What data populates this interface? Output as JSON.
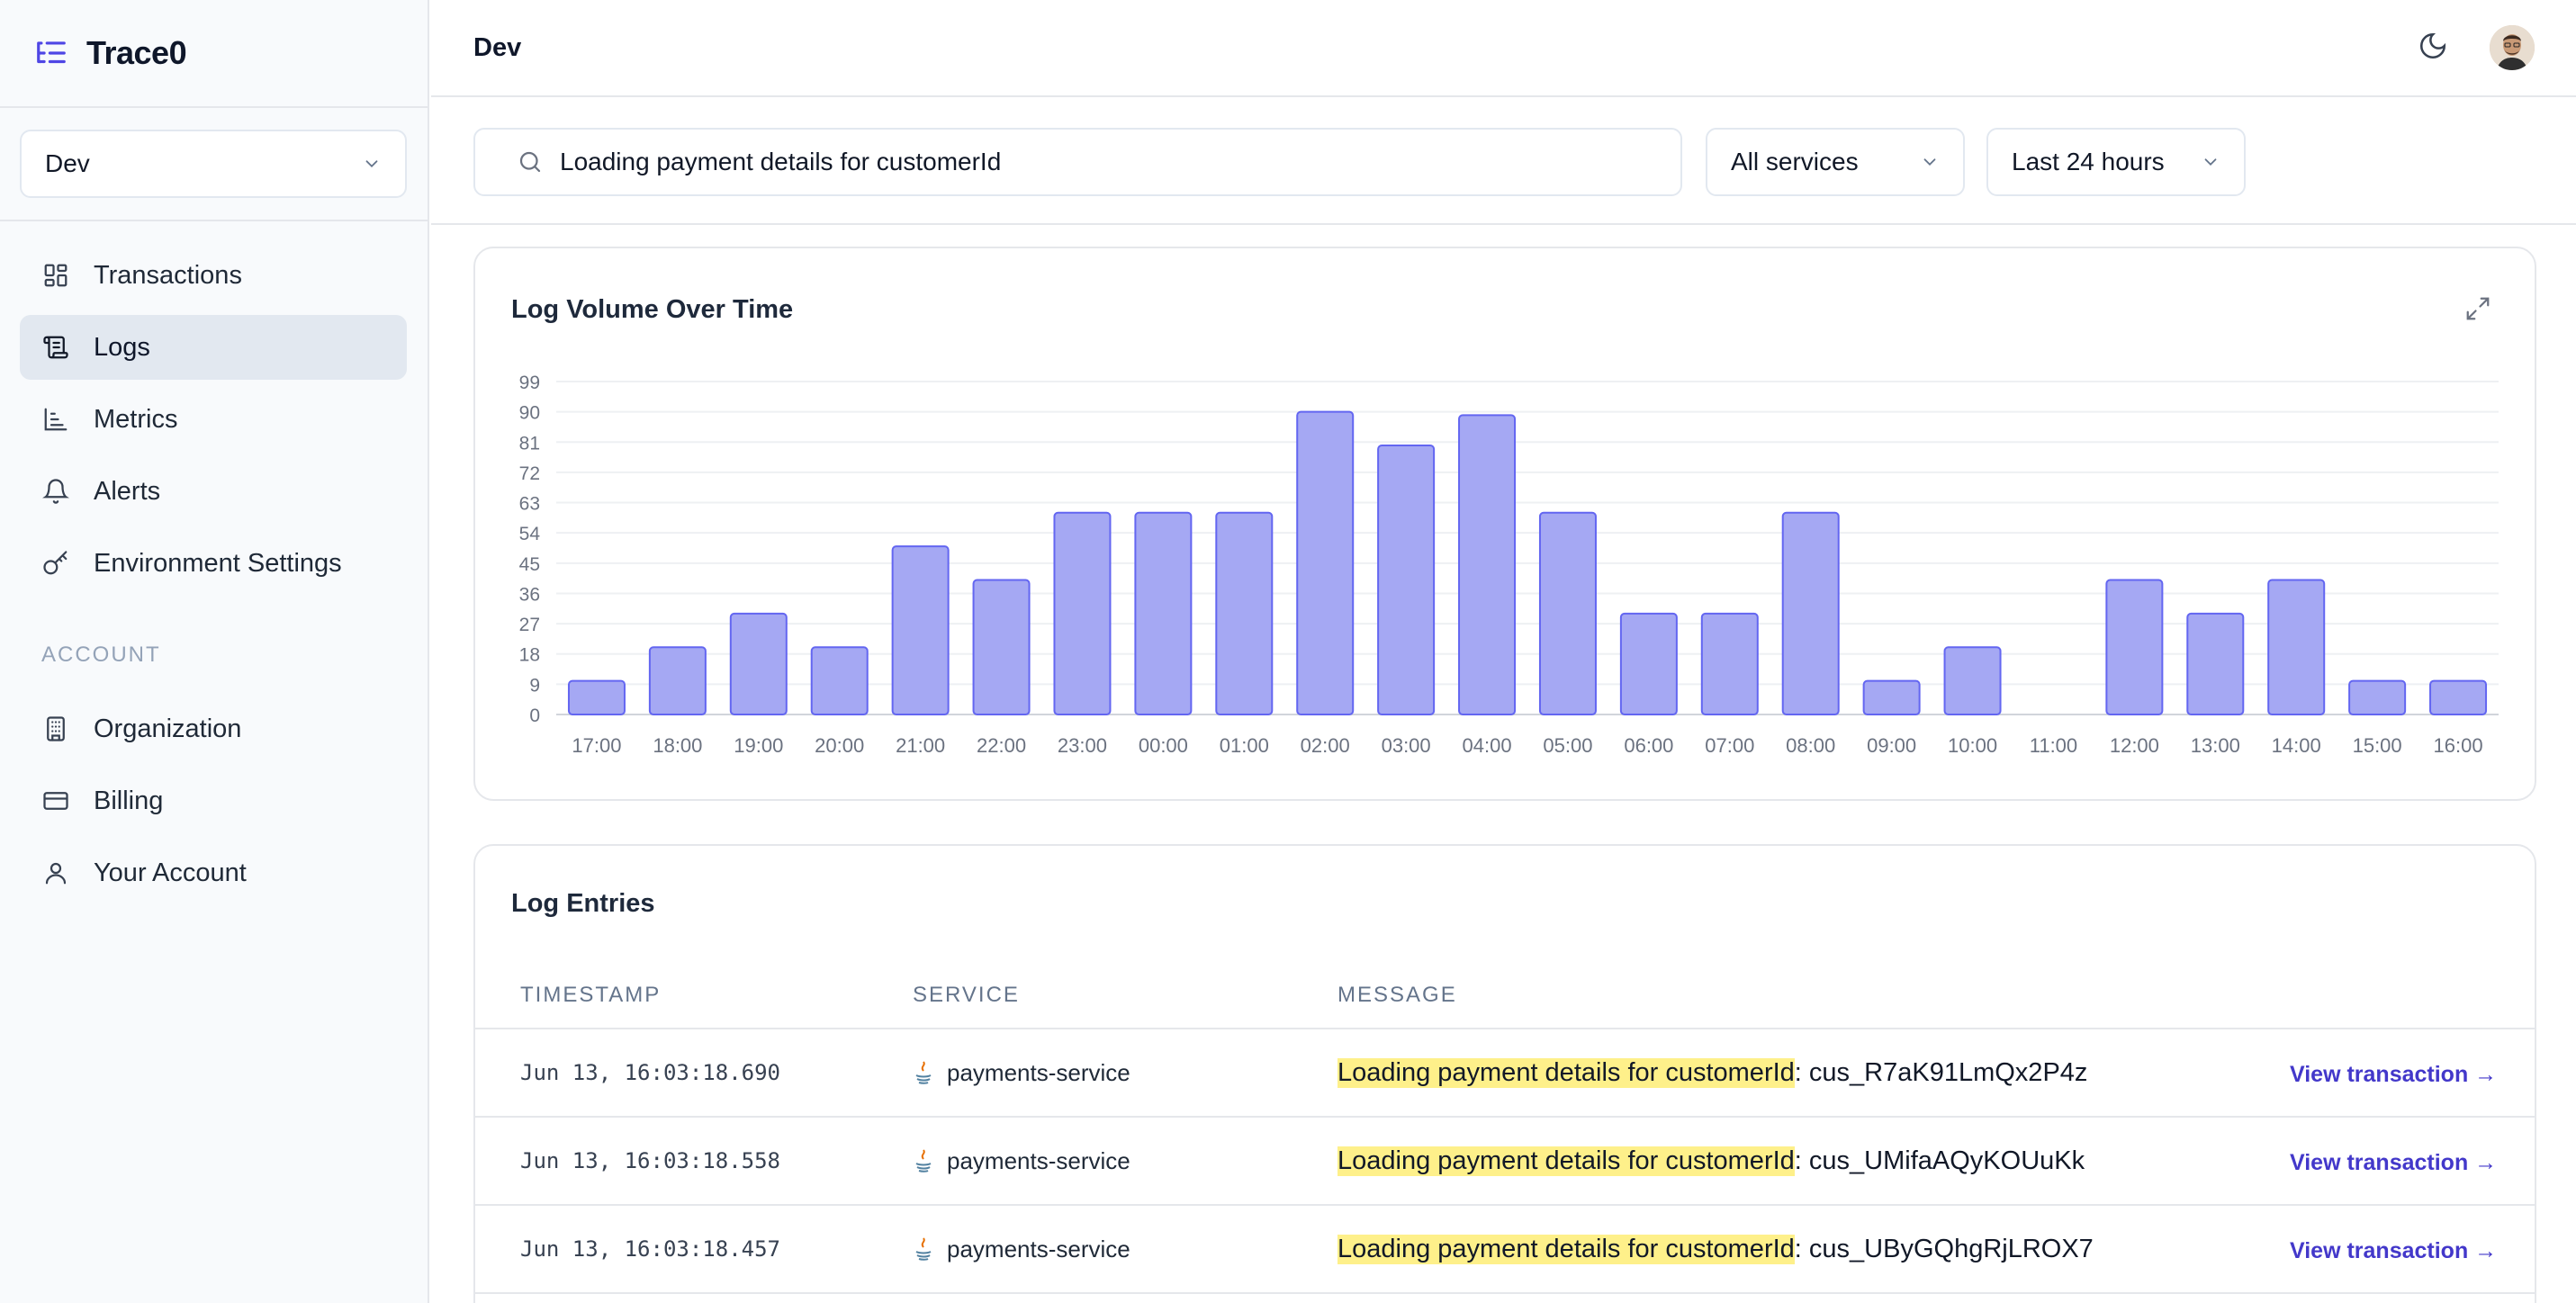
{
  "app": {
    "name": "Trace0"
  },
  "sidebar": {
    "environment": "Dev",
    "nav": [
      {
        "label": "Transactions",
        "icon": "dashboard-icon",
        "active": false
      },
      {
        "label": "Logs",
        "icon": "scroll-icon",
        "active": true
      },
      {
        "label": "Metrics",
        "icon": "chart-icon",
        "active": false
      },
      {
        "label": "Alerts",
        "icon": "bell-icon",
        "active": false
      },
      {
        "label": "Environment Settings",
        "icon": "key-icon",
        "active": false
      }
    ],
    "account_label": "ACCOUNT",
    "account_nav": [
      {
        "label": "Organization",
        "icon": "building-icon"
      },
      {
        "label": "Billing",
        "icon": "credit-card-icon"
      },
      {
        "label": "Your Account",
        "icon": "user-icon"
      }
    ]
  },
  "header": {
    "title": "Dev"
  },
  "filters": {
    "search_value": "Loading payment details for customerId",
    "service": "All services",
    "time_range": "Last 24 hours"
  },
  "volume_card": {
    "title": "Log Volume Over Time"
  },
  "chart_data": {
    "type": "bar",
    "title": "Log Volume Over Time",
    "categories": [
      "17:00",
      "18:00",
      "19:00",
      "20:00",
      "21:00",
      "22:00",
      "23:00",
      "00:00",
      "01:00",
      "02:00",
      "03:00",
      "04:00",
      "05:00",
      "06:00",
      "07:00",
      "08:00",
      "09:00",
      "10:00",
      "11:00",
      "12:00",
      "13:00",
      "14:00",
      "15:00",
      "16:00"
    ],
    "values": [
      10,
      20,
      30,
      20,
      50,
      40,
      60,
      60,
      60,
      90,
      80,
      89,
      60,
      30,
      30,
      60,
      10,
      20,
      0,
      40,
      30,
      40,
      10,
      10
    ],
    "yticks": [
      0,
      9,
      18,
      27,
      36,
      45,
      54,
      63,
      72,
      81,
      90,
      99
    ],
    "ylim": [
      0,
      99
    ],
    "grid": true,
    "bar_color": "#a5a8f3",
    "bar_stroke": "#6366f1"
  },
  "entries_card": {
    "title": "Log Entries",
    "columns": {
      "timestamp": "TIMESTAMP",
      "service": "SERVICE",
      "message": "MESSAGE"
    },
    "rows": [
      {
        "timestamp": "Jun 13, 16:03:18.690",
        "service": "payments-service",
        "highlight": "Loading payment details for customerId",
        "rest": ": cus_R7aK91LmQx2P4z",
        "action": "View transaction →"
      },
      {
        "timestamp": "Jun 13, 16:03:18.558",
        "service": "payments-service",
        "highlight": "Loading payment details for customerId",
        "rest": ": cus_UMifaAQyKOUuKk",
        "action": "View transaction →"
      },
      {
        "timestamp": "Jun 13, 16:03:18.457",
        "service": "payments-service",
        "highlight": "Loading payment details for customerId",
        "rest": ": cus_UByGQhgRjLROX7",
        "action": "View transaction →"
      }
    ]
  }
}
